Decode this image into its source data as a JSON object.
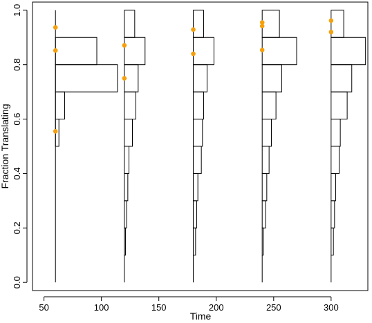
{
  "chart_data": {
    "type": "histogram-violin",
    "xlabel": "Time",
    "ylabel": "Fraction Translating",
    "xlim": [
      40,
      332
    ],
    "ylim": [
      -0.03,
      1.03
    ],
    "x_ticks": [
      50,
      100,
      150,
      200,
      250,
      300
    ],
    "y_ticks": [
      0.0,
      0.2,
      0.4,
      0.6,
      0.8,
      1.0
    ],
    "x_tick_labels": [
      "50",
      "100",
      "150",
      "200",
      "250",
      "300"
    ],
    "y_tick_labels": [
      "0.0",
      "0.2",
      "0.4",
      "0.6",
      "0.8",
      "1.0"
    ],
    "grid": false,
    "bin_edges": [
      0.0,
      0.1,
      0.2,
      0.3,
      0.4,
      0.5,
      0.6,
      0.7,
      0.8,
      0.9,
      1.0
    ],
    "groups": [
      {
        "time": 60,
        "bar_widths": [
          0,
          0,
          0,
          0,
          0,
          3,
          8,
          54,
          36,
          0
        ],
        "points": [
          0.555,
          0.852,
          0.937
        ],
        "vline": [
          0.0,
          1.0
        ]
      },
      {
        "time": 120,
        "bar_widths": [
          0,
          1,
          2,
          3,
          4,
          7,
          10,
          12,
          18,
          9
        ],
        "points": [
          0.75,
          0.871
        ],
        "vline": [
          0.0,
          0.1
        ]
      },
      {
        "time": 180,
        "bar_widths": [
          0,
          2,
          3,
          4,
          7,
          8,
          9,
          12,
          18,
          9
        ],
        "points": [
          0.84,
          0.929
        ],
        "vline": [
          0.0,
          0.1
        ]
      },
      {
        "time": 240,
        "bar_widths": [
          0,
          1,
          3,
          4,
          6,
          8,
          12,
          17,
          30,
          15
        ],
        "points": [
          0.854,
          0.942,
          0.955
        ],
        "vline": [
          0.0,
          0.1
        ]
      },
      {
        "time": 300,
        "bar_widths": [
          0,
          2,
          3,
          4,
          7,
          8,
          14,
          18,
          30,
          11
        ],
        "points": [
          0.92,
          0.962
        ],
        "vline": [
          0.0,
          0.1
        ]
      }
    ],
    "point_color": "#F5A00C",
    "line_color": "#000000"
  }
}
